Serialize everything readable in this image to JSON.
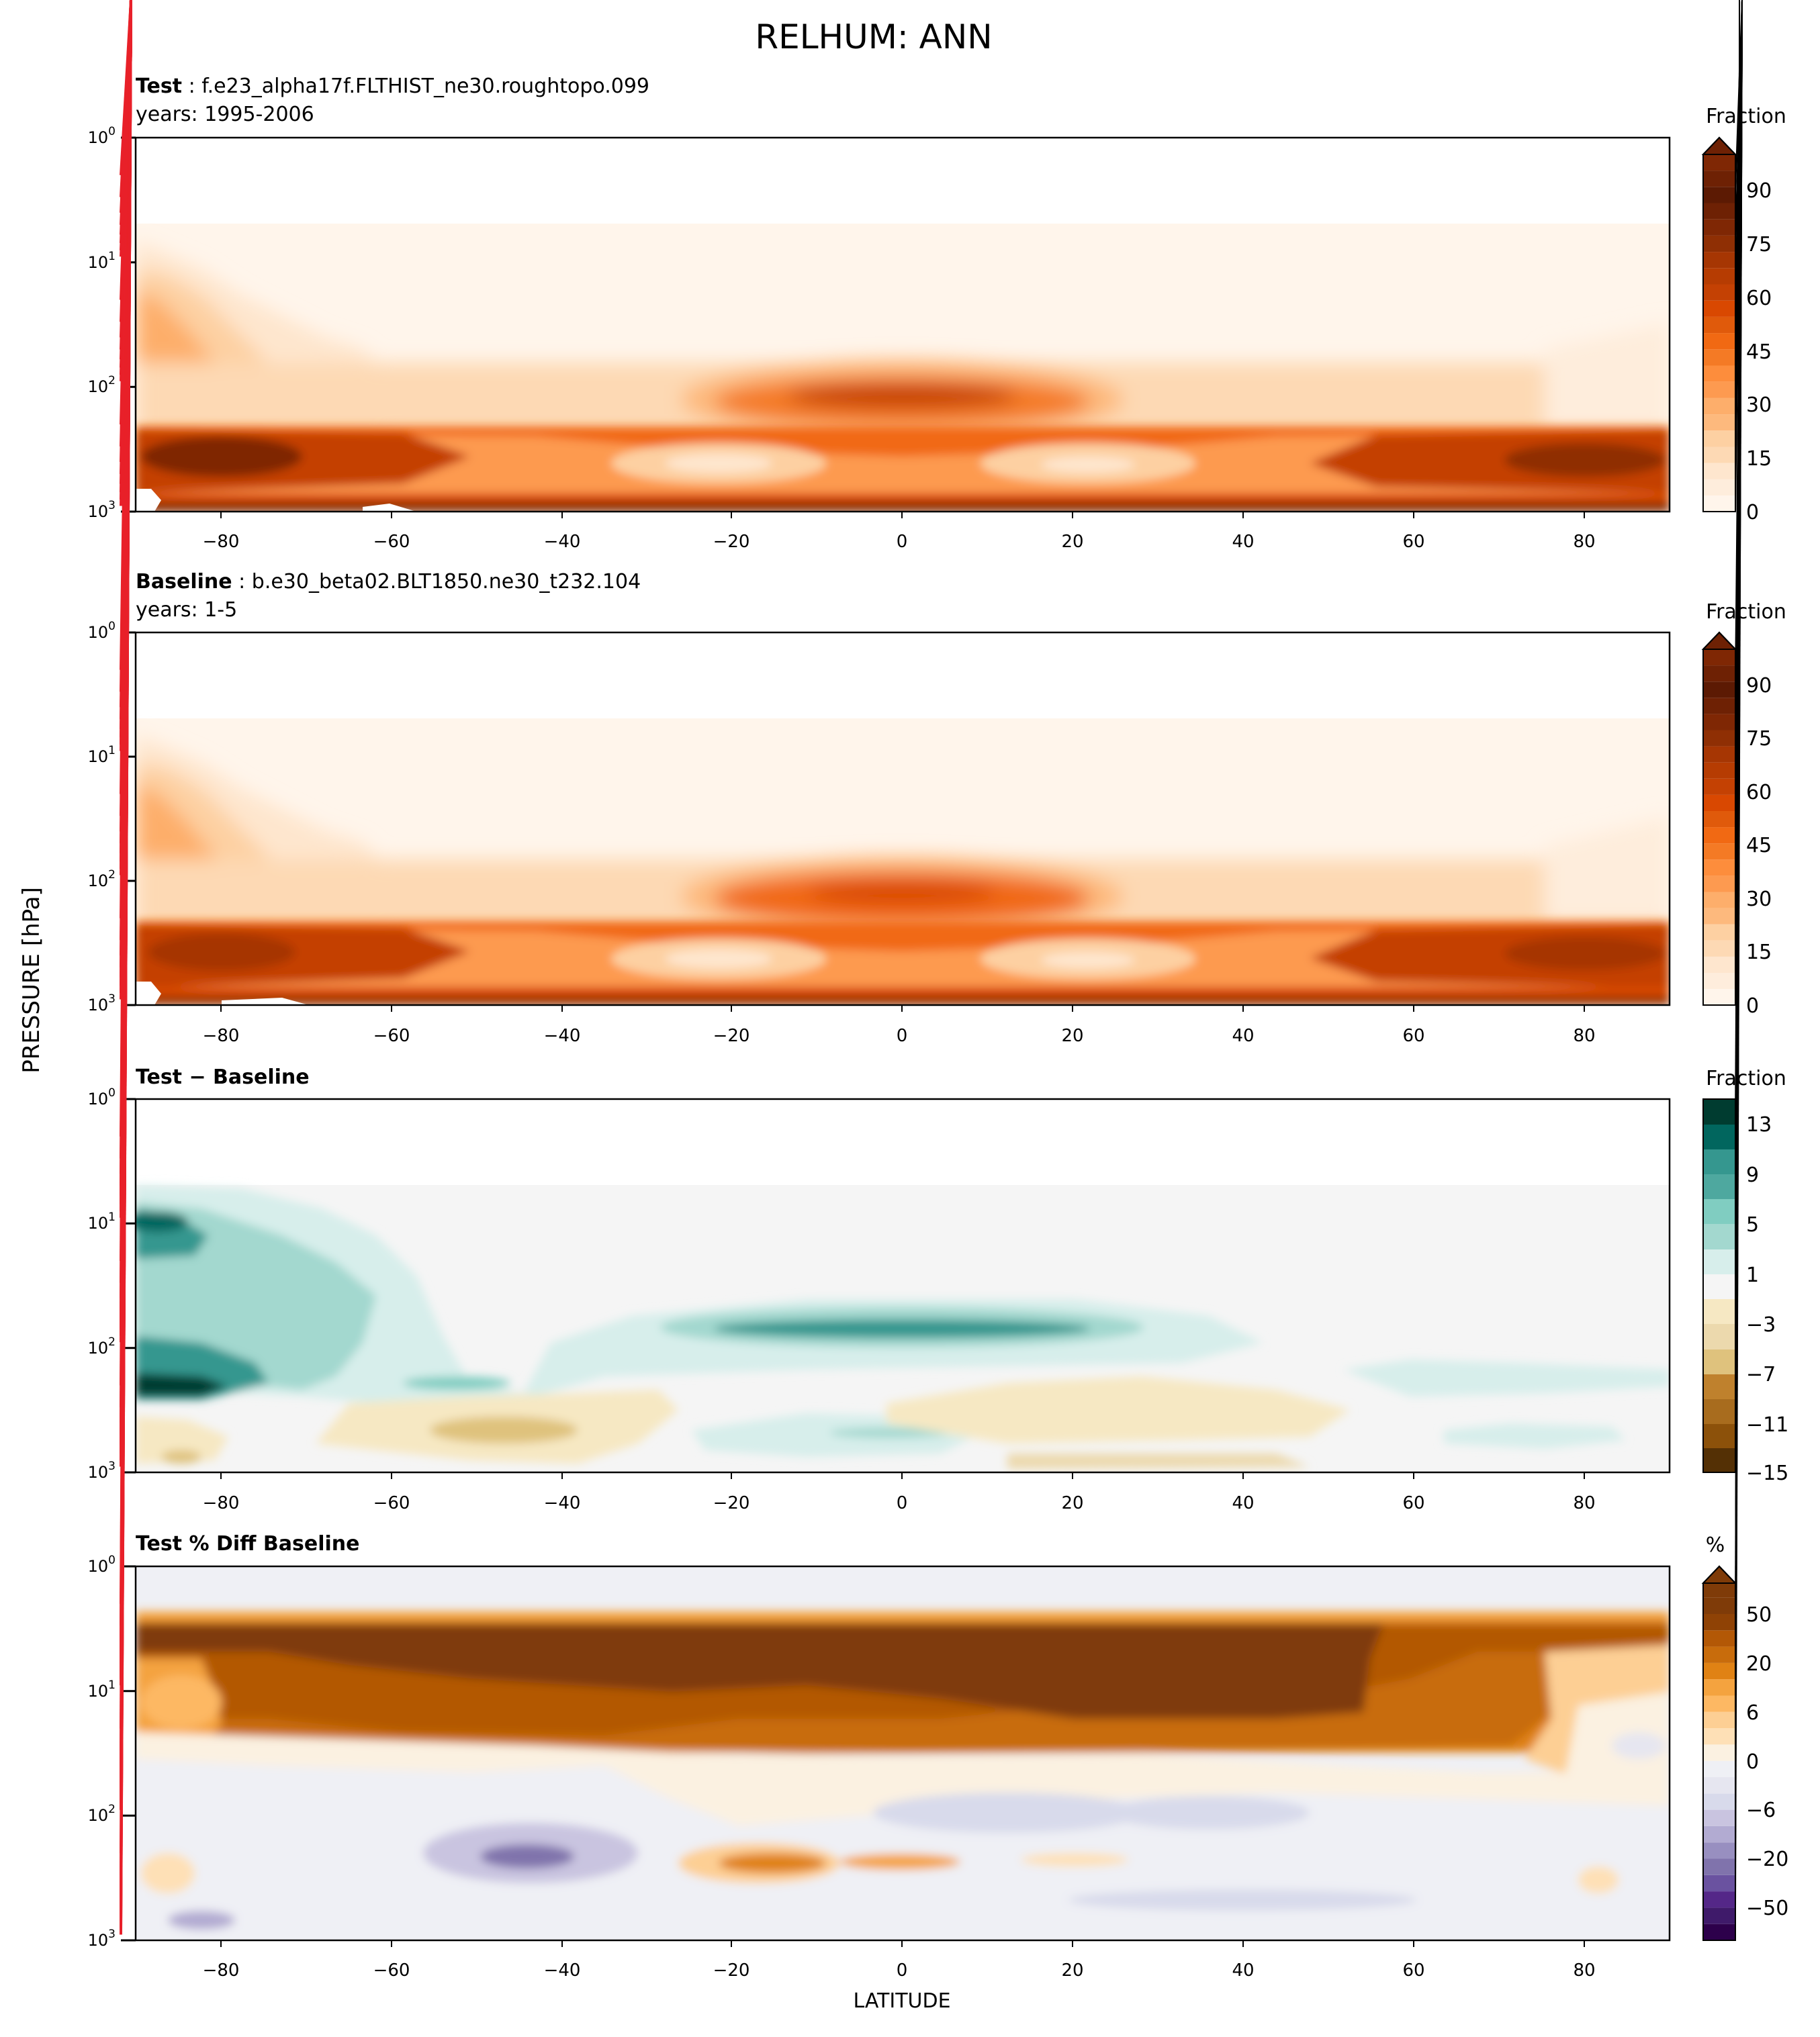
{
  "figure": {
    "title": "RELHUM: ANN",
    "ylabel": "PRESSURE [hPa]",
    "xlabel": "LATITUDE"
  },
  "chart_data": [
    {
      "type": "heatmap",
      "id": "test",
      "title_bold": "Test",
      "title_rest": " : f.e23_alpha17f.FLTHIST_ne30.roughtopo.099",
      "subtitle": "years: 1995-2006",
      "cbar_label": "Fraction",
      "cbar_extend": "max",
      "cbar_ticks": [
        "90",
        "75",
        "60",
        "45",
        "30",
        "15",
        "0"
      ],
      "x_ticks": [
        "−80",
        "−60",
        "−40",
        "−20",
        "0",
        "20",
        "40",
        "60",
        "80"
      ],
      "y_ticks": [
        "10",
        "10",
        "10",
        "10"
      ],
      "y_exps": [
        "0",
        "1",
        "2",
        "3"
      ],
      "xlim": [
        -90,
        90
      ],
      "ylim": [
        1000,
        1
      ],
      "yscale": "log",
      "colormap": "Oranges",
      "levels": [
        0,
        5,
        10,
        15,
        20,
        25,
        30,
        35,
        40,
        45,
        50,
        55,
        60,
        65,
        70,
        75,
        80,
        85,
        90,
        95,
        100
      ],
      "colors": [
        "#fff5eb",
        "#feeddc",
        "#fee6ce",
        "#fdd9b4",
        "#fdd0a2",
        "#fdb97d",
        "#fdae6b",
        "#fd9a50",
        "#fd8d3c",
        "#f47a25",
        "#f16913",
        "#e05a0b",
        "#d94801",
        "#c44103",
        "#b63c02",
        "#a63603",
        "#8f2f04",
        "#7f2704",
        "#6e2104",
        "#5c1a03"
      ]
    },
    {
      "type": "heatmap",
      "id": "baseline",
      "title_bold": "Baseline",
      "title_rest": " : b.e30_beta02.BLT1850.ne30_t232.104",
      "subtitle": "years: 1-5",
      "cbar_label": "Fraction",
      "cbar_extend": "max",
      "cbar_ticks": [
        "90",
        "75",
        "60",
        "45",
        "30",
        "15",
        "0"
      ],
      "x_ticks": [
        "−80",
        "−60",
        "−40",
        "−20",
        "0",
        "20",
        "40",
        "60",
        "80"
      ],
      "y_ticks": [
        "10",
        "10",
        "10",
        "10"
      ],
      "y_exps": [
        "0",
        "1",
        "2",
        "3"
      ],
      "xlim": [
        -90,
        90
      ],
      "ylim": [
        1000,
        1
      ],
      "yscale": "log",
      "colormap": "Oranges"
    },
    {
      "type": "heatmap",
      "id": "diff",
      "title_bold": "Test − Baseline",
      "subtitle": "",
      "cbar_label": "Fraction",
      "cbar_extend": "neither",
      "cbar_ticks": [
        "13",
        "9",
        "5",
        "1",
        "−3",
        "−7",
        "−11",
        "−15"
      ],
      "x_ticks": [
        "−80",
        "−60",
        "−40",
        "−20",
        "0",
        "20",
        "40",
        "60",
        "80"
      ],
      "y_ticks": [
        "10",
        "10",
        "10",
        "10"
      ],
      "y_exps": [
        "0",
        "1",
        "2",
        "3"
      ],
      "xlim": [
        -90,
        90
      ],
      "ylim": [
        1000,
        1
      ],
      "yscale": "log",
      "colormap": "BrBG",
      "colors": [
        "#543005",
        "#8c510a",
        "#a86c1e",
        "#bf812d",
        "#d3ab67",
        "#dfc27d",
        "#ecd9ad",
        "#f6e8c3",
        "#f5f5f5",
        "#d7eeeb",
        "#c7eae5",
        "#a3d8cf",
        "#80cdc1",
        "#4ea89f",
        "#35978f",
        "#01665e",
        "#003c30"
      ]
    },
    {
      "type": "heatmap",
      "id": "pctdiff",
      "title_bold": "Test % Diff Baseline",
      "subtitle": "",
      "cbar_label": "%",
      "cbar_extend": "max",
      "cbar_ticks": [
        "50",
        "20",
        "6",
        "0",
        "−6",
        "−20",
        "−50"
      ],
      "x_ticks": [
        "−80",
        "−60",
        "−40",
        "−20",
        "0",
        "20",
        "40",
        "60",
        "80"
      ],
      "y_ticks": [
        "10",
        "10",
        "10",
        "10"
      ],
      "y_exps": [
        "0",
        "1",
        "2",
        "3"
      ],
      "xlim": [
        -90,
        90
      ],
      "ylim": [
        1000,
        1
      ],
      "yscale": "log",
      "colormap": "PuOr_r",
      "colors": [
        "#2d004b",
        "#3f1a6a",
        "#542788",
        "#6a52a0",
        "#8073ac",
        "#988fc0",
        "#b2abd2",
        "#c9c4e0",
        "#d8daeb",
        "#e6e6f0",
        "#eff0f5",
        "#fbf1e1",
        "#fee0b6",
        "#fdcf94",
        "#fdb863",
        "#f4a33f",
        "#e08214",
        "#c86c0c",
        "#b35806",
        "#8f4205",
        "#7f3b08"
      ]
    }
  ]
}
